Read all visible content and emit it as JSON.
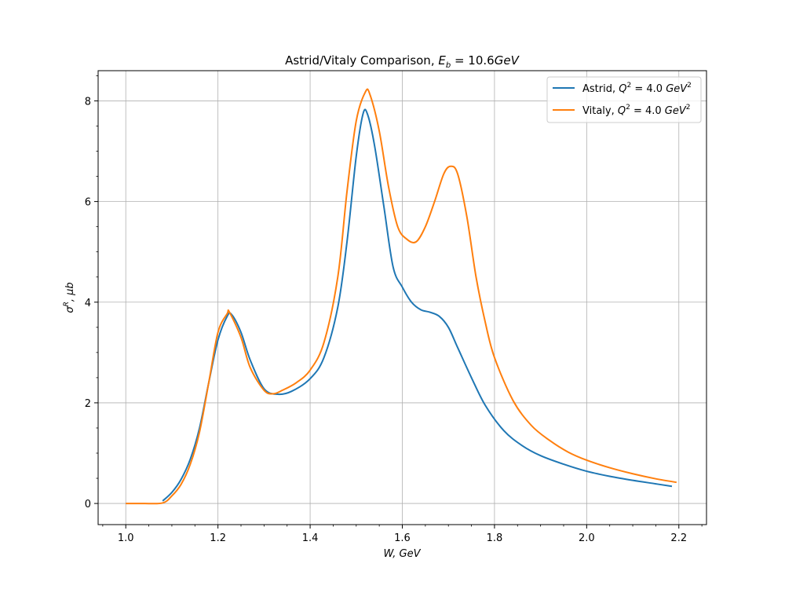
{
  "chart_data": {
    "type": "line",
    "title": "Astrid/Vitaly Comparison, ",
    "title_math": "E_b = 10.6GeV",
    "xlabel": "W, GeV",
    "ylabel": "σ^R, μb",
    "xlim": [
      0.94,
      2.26
    ],
    "ylim": [
      -0.42,
      8.6
    ],
    "x_ticks": [
      1.0,
      1.2,
      1.4,
      1.6,
      1.8,
      2.0,
      2.2
    ],
    "x_tick_labels": [
      "1.0",
      "1.2",
      "1.4",
      "1.6",
      "1.8",
      "2.0",
      "2.2"
    ],
    "y_ticks": [
      0,
      2,
      4,
      6,
      8
    ],
    "y_tick_labels": [
      "0",
      "2",
      "4",
      "6",
      "8"
    ],
    "grid": true,
    "legend_position": "top-right",
    "series": [
      {
        "name": "Astrid, Q^2 = 4.0 GeV^2",
        "legend_prefix": "Astrid, ",
        "color": "#1f77b4",
        "x": [
          1.08,
          1.1,
          1.12,
          1.14,
          1.16,
          1.18,
          1.2,
          1.22,
          1.23,
          1.25,
          1.27,
          1.3,
          1.33,
          1.36,
          1.4,
          1.43,
          1.46,
          1.48,
          1.5,
          1.515,
          1.525,
          1.54,
          1.56,
          1.58,
          1.6,
          1.62,
          1.64,
          1.66,
          1.68,
          1.7,
          1.72,
          1.75,
          1.78,
          1.82,
          1.86,
          1.9,
          1.95,
          2.0,
          2.05,
          2.1,
          2.15,
          2.185
        ],
        "y": [
          0.05,
          0.22,
          0.48,
          0.88,
          1.5,
          2.4,
          3.25,
          3.72,
          3.75,
          3.4,
          2.85,
          2.28,
          2.17,
          2.23,
          2.48,
          2.9,
          3.9,
          5.2,
          6.9,
          7.75,
          7.72,
          7.1,
          5.9,
          4.7,
          4.3,
          4.0,
          3.85,
          3.8,
          3.72,
          3.5,
          3.1,
          2.5,
          1.95,
          1.45,
          1.15,
          0.95,
          0.78,
          0.64,
          0.54,
          0.46,
          0.39,
          0.34
        ]
      },
      {
        "name": "Vitaly, Q^2 = 4.0 GeV^2",
        "legend_prefix": "Vitaly, ",
        "color": "#ff7f0e",
        "x": [
          1.0,
          1.04,
          1.08,
          1.1,
          1.12,
          1.14,
          1.16,
          1.18,
          1.2,
          1.22,
          1.225,
          1.25,
          1.27,
          1.3,
          1.32,
          1.34,
          1.37,
          1.4,
          1.43,
          1.46,
          1.48,
          1.5,
          1.52,
          1.53,
          1.55,
          1.57,
          1.59,
          1.61,
          1.63,
          1.65,
          1.67,
          1.69,
          1.705,
          1.72,
          1.74,
          1.76,
          1.78,
          1.8,
          1.84,
          1.88,
          1.92,
          1.96,
          2.0,
          2.05,
          2.1,
          2.15,
          2.195
        ],
        "y": [
          0.0,
          0.0,
          0.01,
          0.15,
          0.38,
          0.78,
          1.42,
          2.4,
          3.4,
          3.77,
          3.8,
          3.3,
          2.7,
          2.25,
          2.18,
          2.25,
          2.4,
          2.65,
          3.2,
          4.5,
          6.2,
          7.6,
          8.18,
          8.12,
          7.4,
          6.3,
          5.5,
          5.25,
          5.2,
          5.5,
          6.0,
          6.55,
          6.7,
          6.55,
          5.7,
          4.5,
          3.6,
          2.9,
          2.05,
          1.55,
          1.25,
          1.02,
          0.86,
          0.71,
          0.59,
          0.49,
          0.42
        ]
      }
    ]
  }
}
